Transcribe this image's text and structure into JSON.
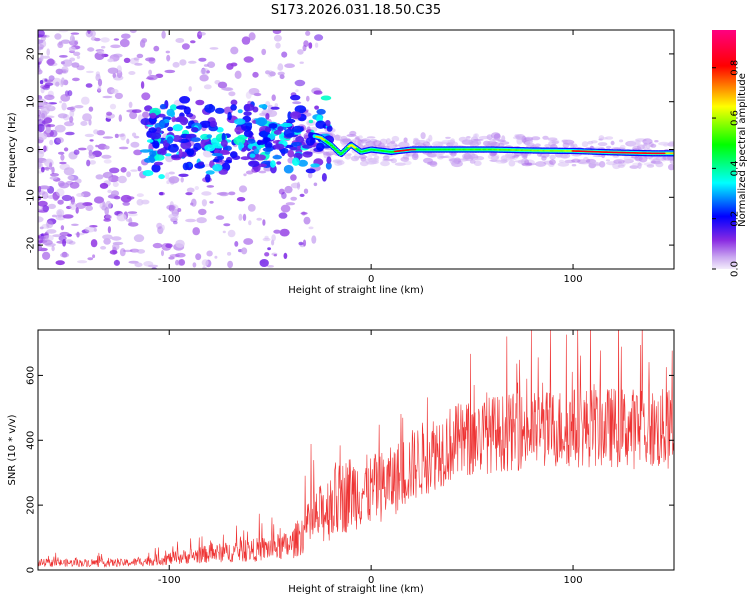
{
  "figure_title": "S173.2026.031.18.50.C35",
  "chart_data": [
    {
      "type": "heatmap",
      "title": "S173.2026.031.18.50.C35",
      "xlabel": "Height of straight line (km)",
      "ylabel": "Frequency (Hz)",
      "xlim": [
        -165,
        150
      ],
      "ylim": [
        -25,
        25
      ],
      "xticks": [
        -100,
        0,
        100
      ],
      "xtick_labels": [
        "-100",
        "0",
        "100"
      ],
      "yticks": [
        -20,
        -10,
        0,
        10,
        20
      ],
      "ytick_labels": [
        "-20",
        "-10",
        "0",
        "10",
        "20"
      ],
      "ridge_x": [
        -60,
        -45,
        -30,
        -25,
        -20,
        -15,
        -10,
        -5,
        0,
        10,
        20,
        40,
        60,
        80,
        100,
        120,
        140,
        150
      ],
      "ridge_freq": [
        2,
        3,
        3,
        2.5,
        1,
        -1,
        1,
        -0.5,
        0,
        -0.5,
        0,
        0,
        0,
        -0.2,
        -0.3,
        -0.6,
        -0.8,
        -0.8
      ],
      "colorbar": {
        "label": "Normalized spectral amplitude",
        "range": [
          0.0,
          0.95
        ],
        "ticks": [
          0.0,
          0.2,
          0.4,
          0.6,
          0.8
        ],
        "tick_labels": [
          "0.0",
          "0.2",
          "0.4",
          "0.6",
          "0.8"
        ],
        "colors": [
          "#f3ecfb",
          "#8a2be2",
          "#0000ff",
          "#00ffff",
          "#00ff00",
          "#ffff00",
          "#ff0000",
          "#ff0080"
        ]
      }
    },
    {
      "type": "line",
      "xlabel": "Height of straight line (km)",
      "ylabel": "SNR (10 * v/v)",
      "xlim": [
        -165,
        150
      ],
      "ylim": [
        0,
        740
      ],
      "xticks": [
        -100,
        0,
        100
      ],
      "xtick_labels": [
        "-100",
        "0",
        "100"
      ],
      "yticks": [
        0,
        200,
        400,
        600
      ],
      "ytick_labels": [
        "0",
        "200",
        "400",
        "600"
      ],
      "color": "#ee3333",
      "envelope_x": [
        -165,
        -120,
        -100,
        -80,
        -60,
        -40,
        -30,
        -20,
        -10,
        0,
        10,
        20,
        30,
        40,
        60,
        80,
        100,
        120,
        150
      ],
      "envelope_mean": [
        22,
        22,
        35,
        50,
        60,
        75,
        140,
        200,
        240,
        245,
        270,
        320,
        360,
        390,
        420,
        430,
        440,
        440,
        430
      ],
      "envelope_amplitude": [
        12,
        12,
        20,
        28,
        35,
        45,
        80,
        110,
        120,
        110,
        110,
        115,
        120,
        120,
        120,
        120,
        125,
        125,
        130
      ]
    }
  ]
}
